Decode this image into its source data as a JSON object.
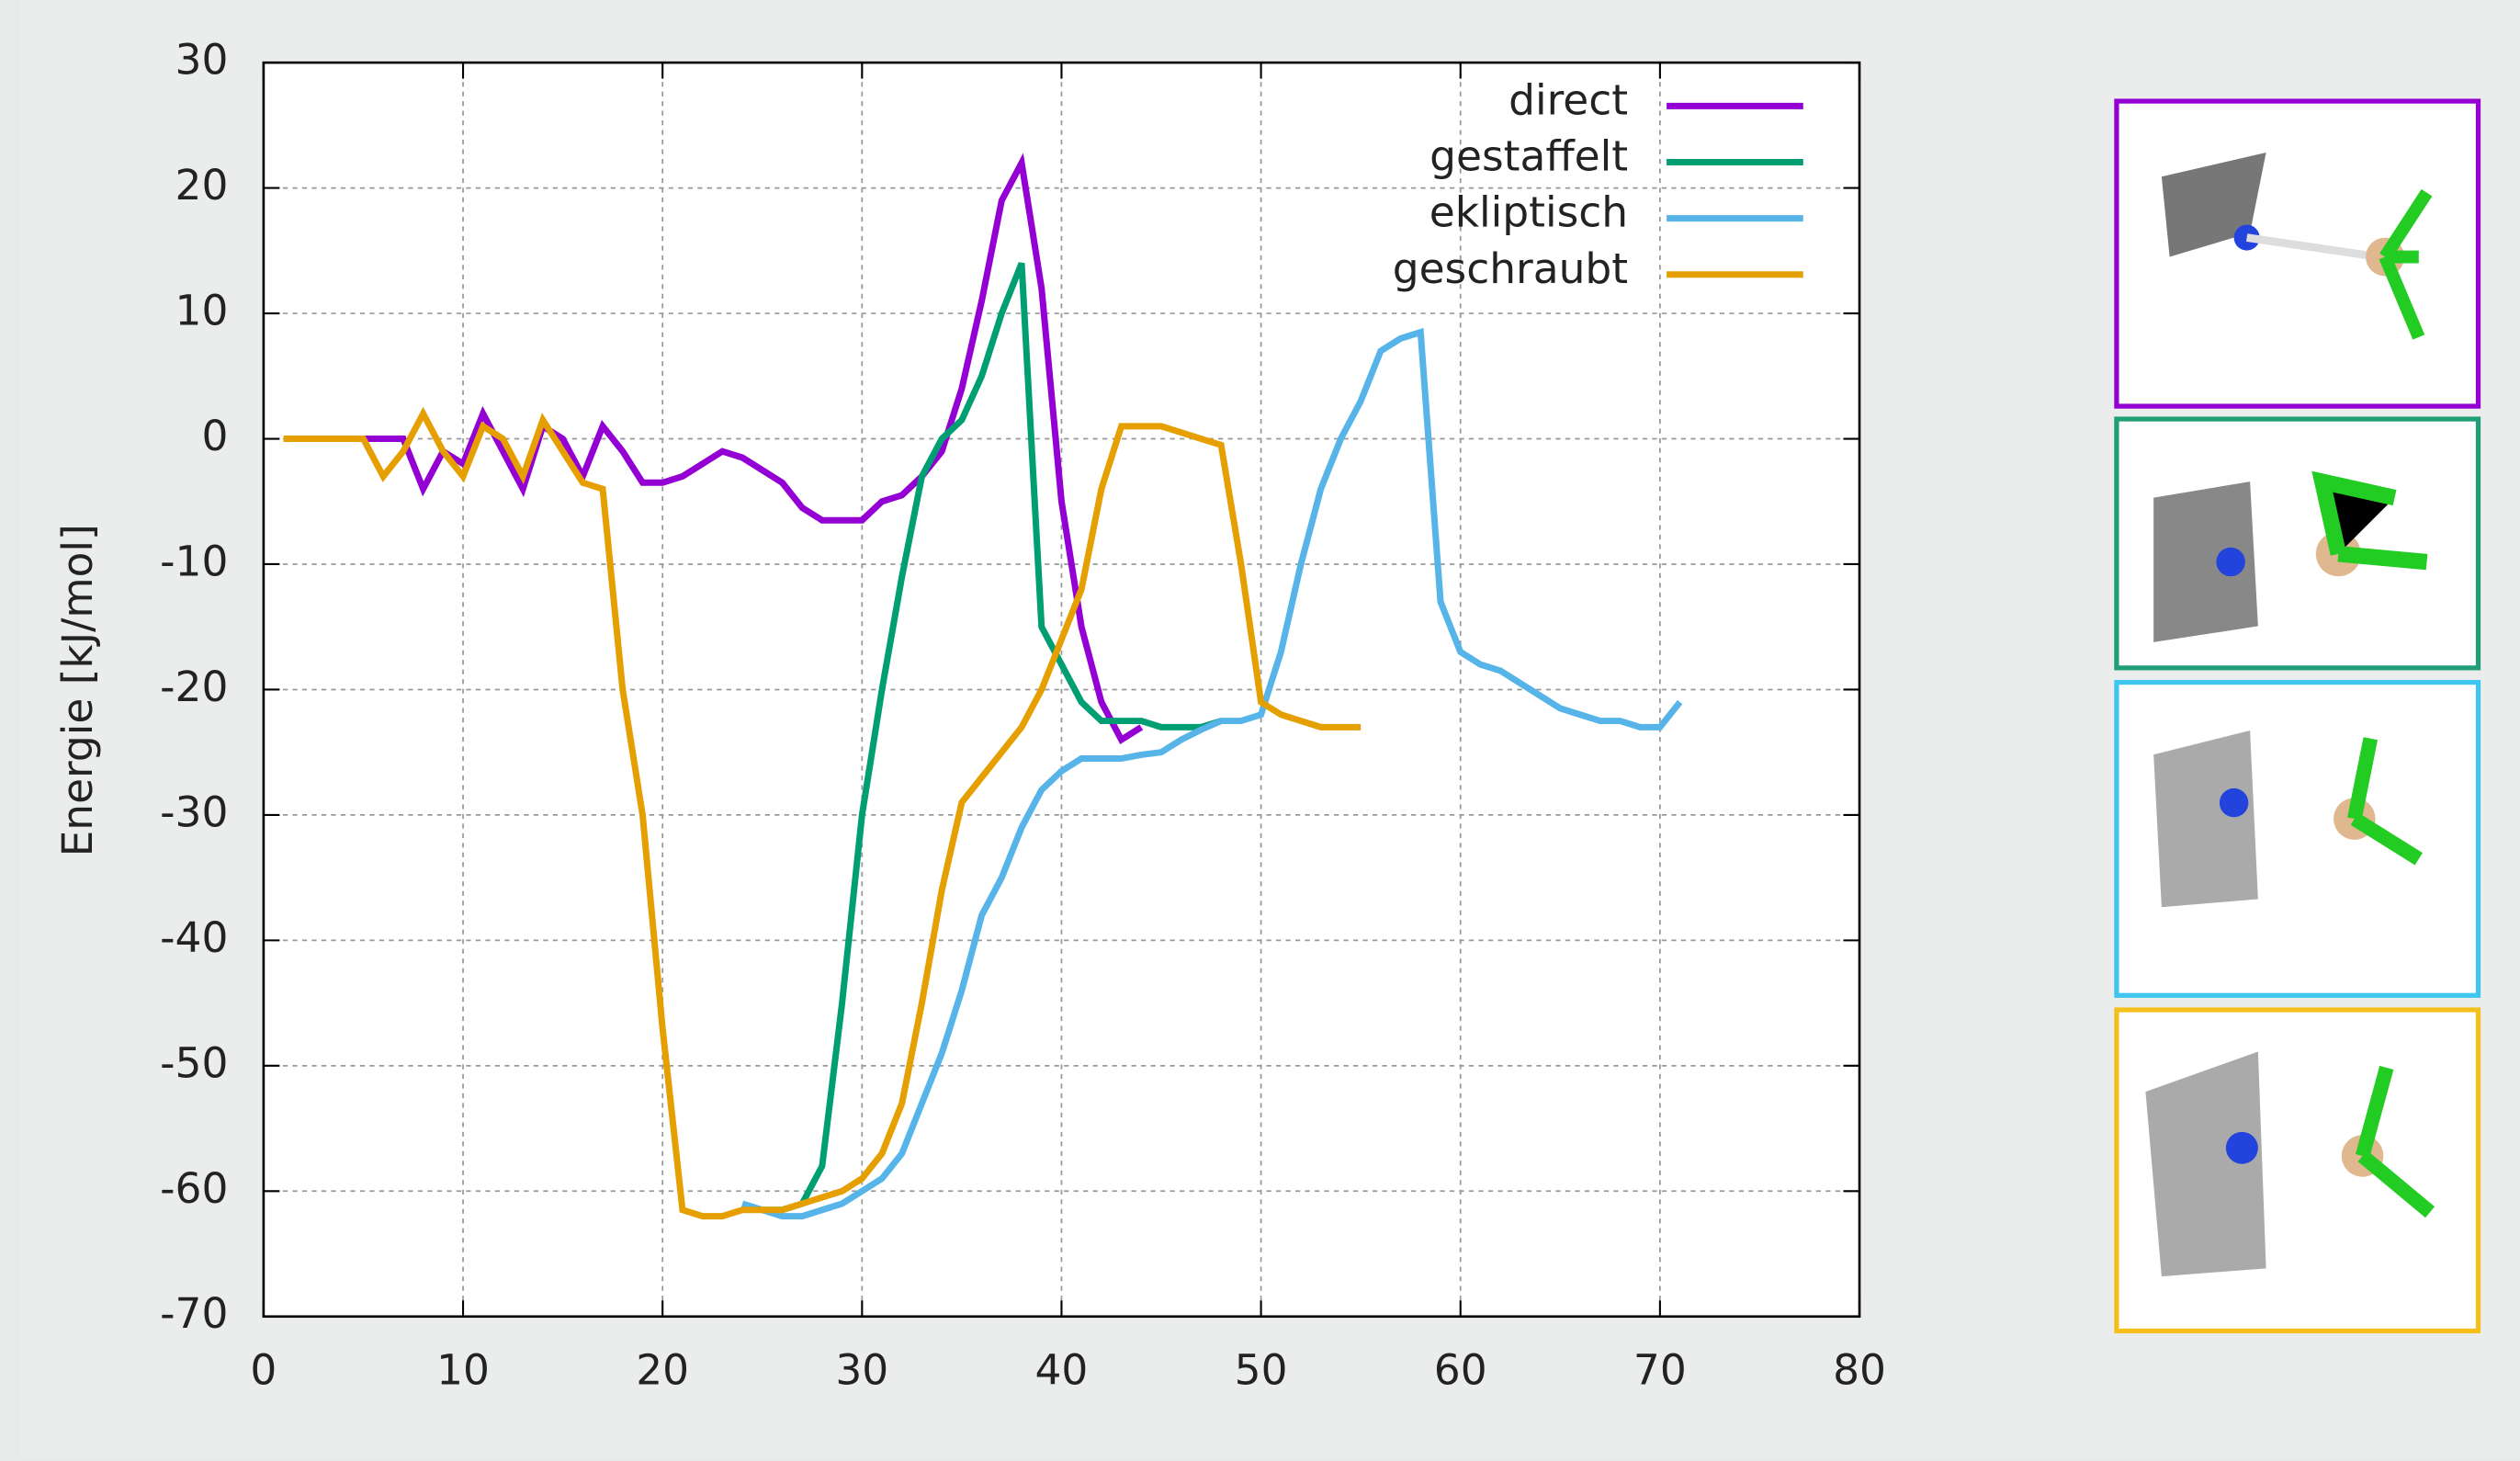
{
  "chart_data": {
    "type": "line",
    "y_label": "Energie [kJ/mol]",
    "xlim": [
      0,
      80
    ],
    "xticks": [
      0,
      10,
      20,
      30,
      40,
      50,
      60,
      70,
      80
    ],
    "ylim": [
      -70,
      30
    ],
    "yticks": [
      -70,
      -60,
      -50,
      -40,
      -30,
      -20,
      -10,
      0,
      10,
      20,
      30
    ],
    "grid": true,
    "legend": "top-right",
    "series": [
      {
        "name": "direct",
        "color": "#9400d3",
        "x": [
          5,
          6,
          7,
          8,
          9,
          10,
          11,
          12,
          13,
          14,
          15,
          16,
          17,
          18,
          19,
          20,
          21,
          22,
          23,
          24,
          25,
          26,
          27,
          28,
          29,
          30,
          31,
          32,
          33,
          34,
          35,
          36,
          37,
          38,
          39,
          40,
          41,
          42,
          43,
          44
        ],
        "values": [
          0,
          0,
          0,
          -4,
          -1,
          -2,
          2,
          -1,
          -4,
          1,
          0,
          -3,
          1,
          -1,
          -3.5,
          -3.5,
          -3,
          -2,
          -1,
          -1.5,
          -2.5,
          -3.5,
          -5.5,
          -6.5,
          -6.5,
          -6.5,
          -5,
          -4.5,
          -3,
          -1,
          4,
          11,
          19,
          22,
          12,
          -5,
          -15,
          -21,
          -24,
          -23
        ]
      },
      {
        "name": "gestaffelt",
        "color": "#009e73",
        "x": [
          25,
          26,
          27,
          28,
          29,
          30,
          31,
          32,
          33,
          34,
          35,
          36,
          37,
          38,
          39,
          40,
          41,
          42,
          43,
          44,
          45,
          46,
          47,
          48
        ],
        "values": [
          -61.5,
          -61.5,
          -61,
          -58,
          -45,
          -30,
          -20,
          -11,
          -3,
          0,
          1.5,
          5,
          10,
          14,
          -15,
          -18,
          -21,
          -22.5,
          -22.5,
          -22.5,
          -23,
          -23,
          -23,
          -22.5
        ]
      },
      {
        "name": "ekliptisch",
        "color": "#56b4e9",
        "x": [
          24,
          25,
          26,
          27,
          28,
          29,
          30,
          31,
          32,
          33,
          34,
          35,
          36,
          37,
          38,
          39,
          40,
          41,
          42,
          43,
          44,
          45,
          46,
          47,
          48,
          49,
          50,
          51,
          52,
          53,
          54,
          55,
          56,
          57,
          58,
          59,
          60,
          61,
          62,
          63,
          64,
          65,
          66,
          67,
          68,
          69,
          70,
          71
        ],
        "values": [
          -61,
          -61.5,
          -62,
          -62,
          -61.5,
          -61,
          -60,
          -59,
          -57,
          -53,
          -49,
          -44,
          -38,
          -35,
          -31,
          -28,
          -26.5,
          -25.5,
          -25.5,
          -25.5,
          -25.2,
          -25,
          -24,
          -23.2,
          -22.5,
          -22.5,
          -22,
          -17,
          -10,
          -4,
          0,
          3,
          7,
          8,
          8.5,
          -13,
          -17,
          -18,
          -18.5,
          -19.5,
          -20.5,
          -21.5,
          -22,
          -22.5,
          -22.5,
          -23,
          -23,
          -21
        ]
      },
      {
        "name": "geschraubt",
        "color": "#e69f00",
        "x": [
          1,
          2,
          3,
          4,
          5,
          6,
          7,
          8,
          9,
          10,
          11,
          12,
          13,
          14,
          15,
          16,
          17,
          18,
          19,
          20,
          21,
          22,
          23,
          24,
          25,
          26,
          27,
          28,
          29,
          30,
          31,
          32,
          33,
          34,
          35,
          36,
          37,
          38,
          39,
          40,
          41,
          42,
          43,
          44,
          45,
          46,
          47,
          48,
          49,
          50,
          51,
          52,
          53,
          54,
          55
        ],
        "values": [
          0,
          0,
          0,
          0,
          0,
          -3,
          -1,
          2,
          -1,
          -3,
          1,
          0,
          -3,
          1.5,
          -1,
          -3.5,
          -4,
          -20,
          -30,
          -47,
          -61.5,
          -62,
          -62,
          -61.5,
          -61.5,
          -61.5,
          -61,
          -60.5,
          -60,
          -59,
          -57,
          -53,
          -45,
          -36,
          -29,
          -27,
          -25,
          -23,
          -20,
          -16,
          -12,
          -4,
          1,
          1,
          1,
          0.5,
          0,
          -0.5,
          -10,
          -21,
          -22,
          -22.5,
          -23,
          -23,
          -23
        ]
      }
    ]
  }
}
